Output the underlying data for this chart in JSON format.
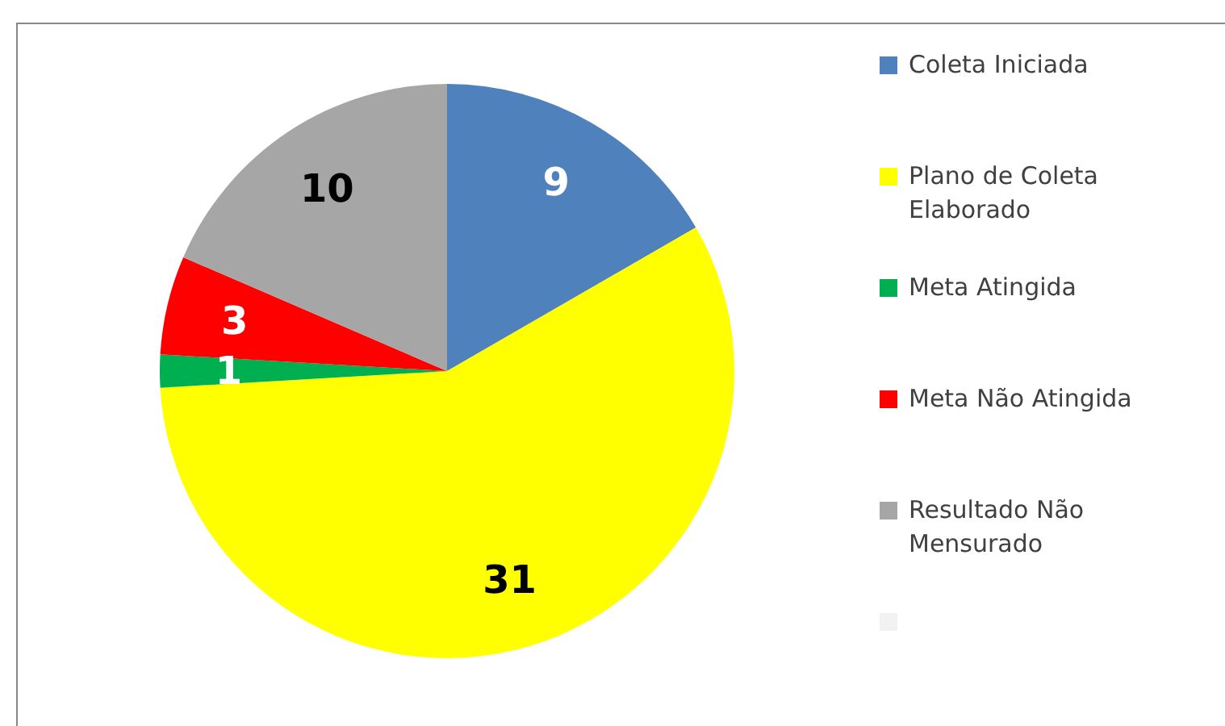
{
  "chart_data": {
    "type": "pie",
    "categories": [
      "Coleta Iniciada",
      "Plano de Coleta Elaborado",
      "Meta Atingida",
      "Meta Não Atingida",
      "Resultado Não Mensurado"
    ],
    "values": [
      9,
      31,
      1,
      3,
      10
    ],
    "colors": [
      "#4f81bd",
      "#ffff00",
      "#00b050",
      "#ff0000",
      "#a6a6a6"
    ],
    "value_labels": [
      "9",
      "31",
      "1",
      "3",
      "10"
    ],
    "legend": "right"
  }
}
